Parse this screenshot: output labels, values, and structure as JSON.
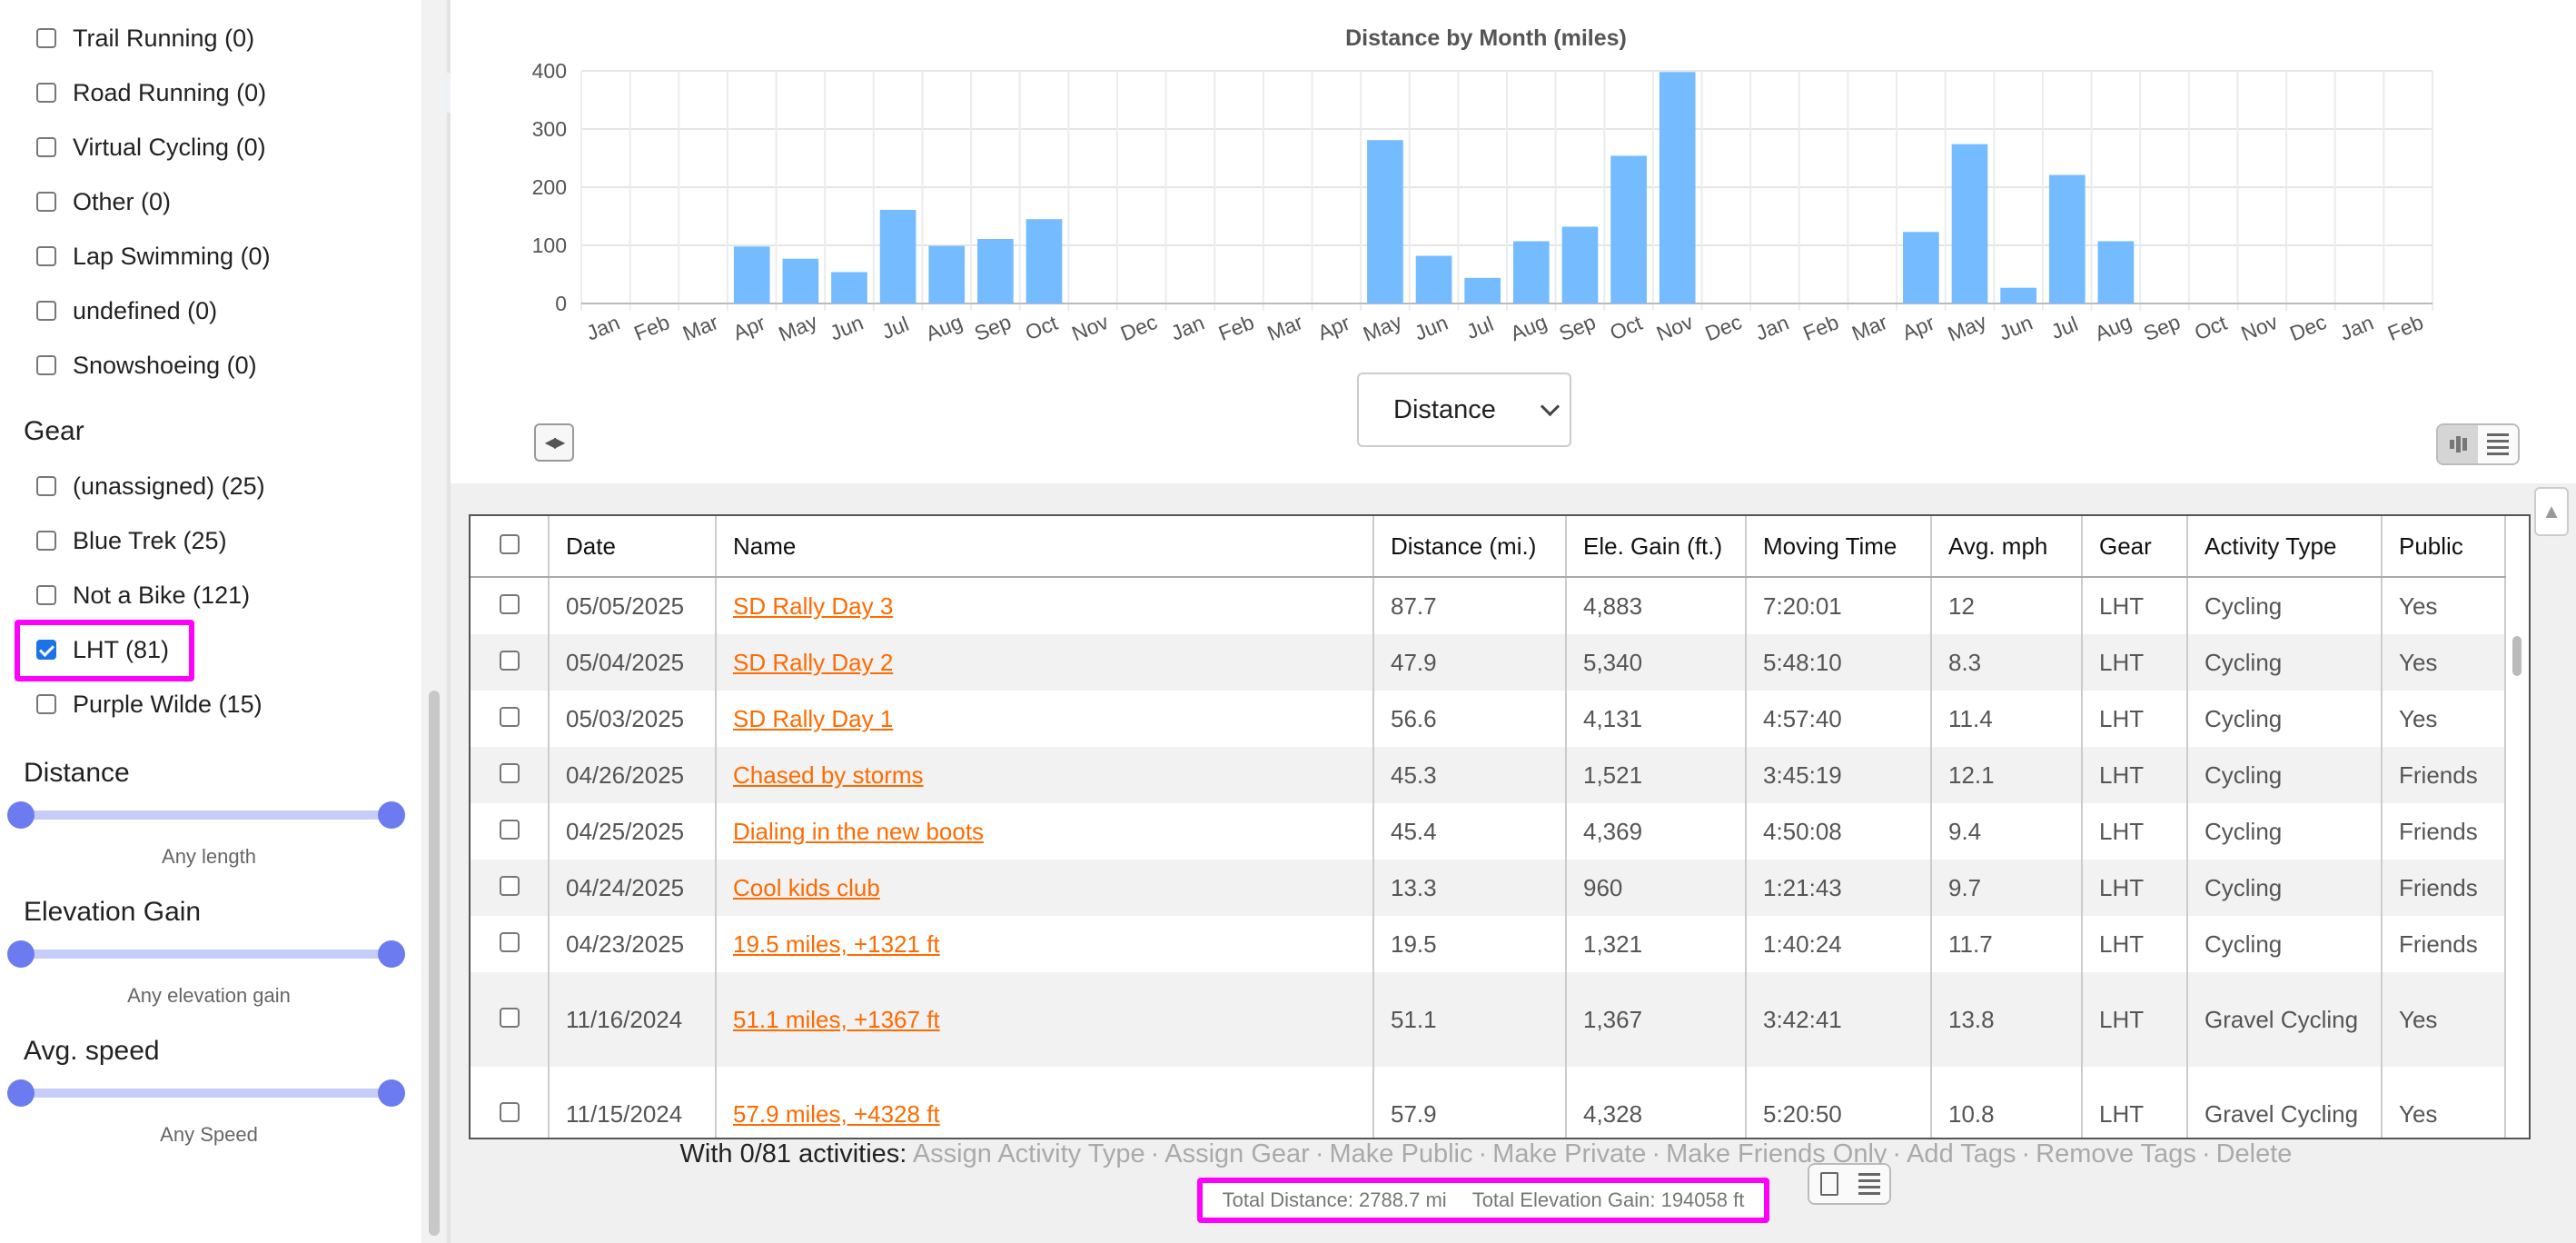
{
  "sidebar": {
    "activity_types": [
      {
        "label": "Trail Running (0)",
        "checked": false
      },
      {
        "label": "Road Running (0)",
        "checked": false
      },
      {
        "label": "Virtual Cycling (0)",
        "checked": false
      },
      {
        "label": "Other (0)",
        "checked": false
      },
      {
        "label": "Lap Swimming (0)",
        "checked": false
      },
      {
        "label": "undefined (0)",
        "checked": false
      },
      {
        "label": "Snowshoeing (0)",
        "checked": false
      }
    ],
    "gear_title": "Gear",
    "gear": [
      {
        "label": "(unassigned) (25)",
        "checked": false
      },
      {
        "label": "Blue Trek (25)",
        "checked": false
      },
      {
        "label": "Not a Bike (121)",
        "checked": false
      },
      {
        "label": "LHT (81)",
        "checked": true
      },
      {
        "label": "Purple Wilde (15)",
        "checked": false
      }
    ],
    "filters": [
      {
        "title": "Distance",
        "caption": "Any length"
      },
      {
        "title": "Elevation Gain",
        "caption": "Any elevation gain"
      },
      {
        "title": "Avg. speed",
        "caption": "Any Speed"
      }
    ],
    "collapse_icon": "double-chevron-left-icon"
  },
  "chart_data": {
    "type": "bar",
    "title": "Distance by Month (miles)",
    "categories": [
      "Jan",
      "Feb",
      "Mar",
      "Apr",
      "May",
      "Jun",
      "Jul",
      "Aug",
      "Sep",
      "Oct",
      "Nov",
      "Dec",
      "Jan",
      "Feb",
      "Mar",
      "Apr",
      "May",
      "Jun",
      "Jul",
      "Aug",
      "Sep",
      "Oct",
      "Nov",
      "Dec",
      "Jan",
      "Feb",
      "Mar",
      "Apr",
      "May",
      "Jun",
      "Jul",
      "Aug",
      "Sep",
      "Oct",
      "Nov",
      "Dec",
      "Jan",
      "Feb"
    ],
    "values": [
      0,
      0,
      0,
      98,
      77,
      54,
      161,
      99,
      111,
      145,
      0,
      0,
      0,
      0,
      0,
      0,
      281,
      82,
      44,
      107,
      132,
      254,
      398,
      0,
      0,
      0,
      0,
      123,
      274,
      27,
      221,
      107,
      0,
      0,
      0,
      0,
      0,
      0
    ],
    "yticks": [
      "0",
      "100",
      "200",
      "300",
      "400"
    ],
    "ylim": [
      0,
      400
    ],
    "grid": true,
    "bar_color": "#74bcff"
  },
  "metric_select": {
    "value": "Distance"
  },
  "table": {
    "columns": [
      "Date",
      "Name",
      "Distance (mi.)",
      "Ele. Gain (ft.)",
      "Moving Time",
      "Avg. mph",
      "Gear",
      "Activity Type",
      "Public"
    ],
    "rows": [
      {
        "date": "05/05/2025",
        "name": "SD Rally Day 3",
        "distance": "87.7",
        "gain": "4,883",
        "time": "7:20:01",
        "mph": "12",
        "gear": "LHT",
        "type": "Cycling",
        "public": "Yes"
      },
      {
        "date": "05/04/2025",
        "name": "SD Rally Day 2",
        "distance": "47.9",
        "gain": "5,340",
        "time": "5:48:10",
        "mph": "8.3",
        "gear": "LHT",
        "type": "Cycling",
        "public": "Yes"
      },
      {
        "date": "05/03/2025",
        "name": "SD Rally Day 1",
        "distance": "56.6",
        "gain": "4,131",
        "time": "4:57:40",
        "mph": "11.4",
        "gear": "LHT",
        "type": "Cycling",
        "public": "Yes"
      },
      {
        "date": "04/26/2025",
        "name": "Chased by storms",
        "distance": "45.3",
        "gain": "1,521",
        "time": "3:45:19",
        "mph": "12.1",
        "gear": "LHT",
        "type": "Cycling",
        "public": "Friends"
      },
      {
        "date": "04/25/2025",
        "name": "Dialing in the new boots",
        "distance": "45.4",
        "gain": "4,369",
        "time": "4:50:08",
        "mph": "9.4",
        "gear": "LHT",
        "type": "Cycling",
        "public": "Friends"
      },
      {
        "date": "04/24/2025",
        "name": "Cool kids club",
        "distance": "13.3",
        "gain": "960",
        "time": "1:21:43",
        "mph": "9.7",
        "gear": "LHT",
        "type": "Cycling",
        "public": "Friends"
      },
      {
        "date": "04/23/2025",
        "name": "19.5 miles, +1321 ft",
        "distance": "19.5",
        "gain": "1,321",
        "time": "1:40:24",
        "mph": "11.7",
        "gear": "LHT",
        "type": "Cycling",
        "public": "Friends"
      },
      {
        "date": "11/16/2024",
        "name": "51.1 miles, +1367 ft",
        "distance": "51.1",
        "gain": "1,367",
        "time": "3:42:41",
        "mph": "13.8",
        "gear": "LHT",
        "type": "Gravel Cycling",
        "public": "Yes"
      },
      {
        "date": "11/15/2024",
        "name": "57.9 miles, +4328 ft",
        "distance": "57.9",
        "gain": "4,328",
        "time": "5:20:50",
        "mph": "10.8",
        "gear": "LHT",
        "type": "Gravel Cycling",
        "public": "Yes"
      }
    ]
  },
  "actions": {
    "lead": "With 0/81  activities:",
    "items": [
      "Assign Activity Type",
      "Assign Gear",
      "Make Public",
      "Make Private",
      "Make Friends Only",
      "Add Tags",
      "Remove Tags",
      "Delete"
    ],
    "separator": "·"
  },
  "totals": {
    "distance": "Total Distance: 2788.7 mi",
    "elevation": "Total Elevation Gain: 194058 ft"
  }
}
